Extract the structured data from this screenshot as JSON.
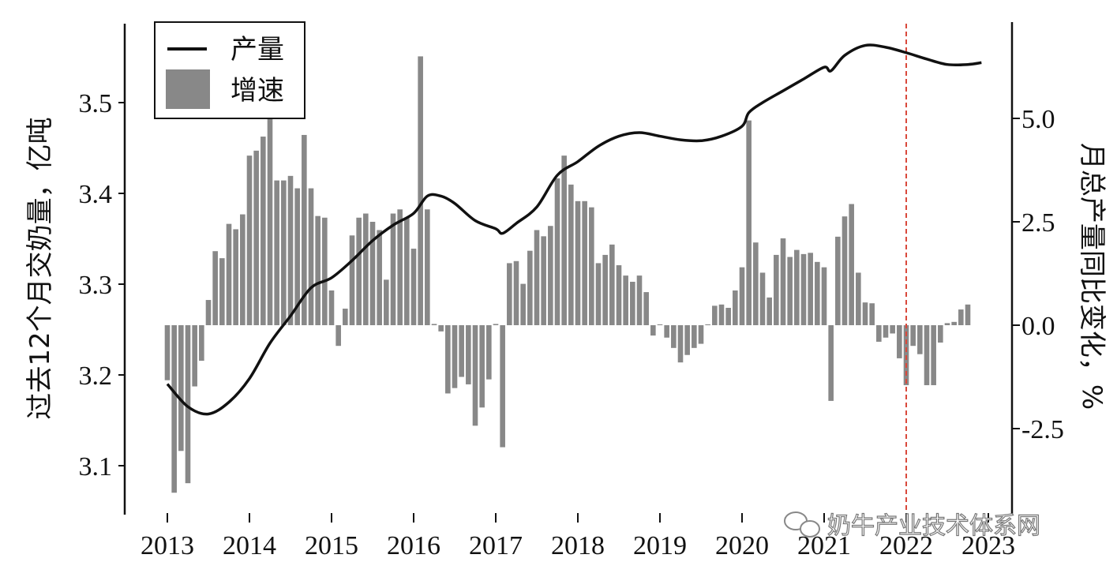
{
  "chart_data": {
    "type": "bar+line",
    "title": "",
    "xlabel": "",
    "ylabel_left": "过去12个月交奶量，亿吨",
    "ylabel_right": "月总产量同比变化，%",
    "x_ticks": [
      "2013",
      "2014",
      "2015",
      "2016",
      "2017",
      "2018",
      "2019",
      "2020",
      "2021",
      "2022",
      "2023"
    ],
    "y_left_ticks": [
      "3.1",
      "3.2",
      "3.3",
      "3.4",
      "3.5"
    ],
    "y_left_range": [
      3.04,
      3.58
    ],
    "y_right_ticks": [
      "-2.5",
      "0.0",
      "2.5",
      "5.0"
    ],
    "y_right_range": [
      -4.6,
      7.2
    ],
    "grid": false,
    "legend": {
      "placement": "top-left",
      "entries": [
        {
          "label": "产量",
          "kind": "line"
        },
        {
          "label": "增速",
          "kind": "bar"
        }
      ]
    },
    "colors": {
      "line": "#111111",
      "bars": "#888888",
      "marker_line": "#d9483b"
    },
    "vertical_marker": {
      "date": "2022-01",
      "style": "dashed"
    },
    "bar_series": {
      "name": "增速",
      "axis": "right",
      "by_year": [
        {
          "year": 2013,
          "values": [
            -1.33,
            -4.05,
            -3.04,
            -3.82,
            -1.48,
            -0.86,
            0.61,
            1.79,
            1.62,
            2.45,
            2.32,
            2.68
          ]
        },
        {
          "year": 2014,
          "values": [
            4.1,
            4.22,
            4.56,
            5.11,
            3.5,
            3.5,
            3.61,
            3.31,
            4.6,
            3.31,
            2.64,
            2.6
          ]
        },
        {
          "year": 2015,
          "values": [
            0.84,
            -0.5,
            0.4,
            2.17,
            2.6,
            2.7,
            2.5,
            2.3,
            1.1,
            2.7,
            2.8,
            2.6
          ]
        },
        {
          "year": 2016,
          "values": [
            1.85,
            6.5,
            2.8,
            0.03,
            -0.15,
            -1.65,
            -1.52,
            -1.25,
            -1.43,
            -2.43,
            -1.99,
            -1.31
          ]
        },
        {
          "year": 2017,
          "values": [
            0.03,
            -2.95,
            1.5,
            1.55,
            1.0,
            1.8,
            2.3,
            2.15,
            2.4,
            3.55,
            4.1,
            3.4
          ]
        },
        {
          "year": 2018,
          "values": [
            3.0,
            3.0,
            2.85,
            1.5,
            1.7,
            1.95,
            1.45,
            1.2,
            1.05,
            1.2,
            0.8,
            -0.25
          ]
        },
        {
          "year": 2019,
          "values": [
            0.02,
            -0.3,
            -0.55,
            -0.9,
            -0.72,
            -0.55,
            -0.45,
            0.02,
            0.47,
            0.5,
            0.42,
            0.84
          ]
        },
        {
          "year": 2020,
          "values": [
            1.4,
            4.95,
            2.0,
            1.27,
            0.67,
            1.7,
            2.1,
            1.65,
            1.82,
            1.72,
            1.75,
            1.53
          ]
        },
        {
          "year": 2021,
          "values": [
            1.4,
            -1.83,
            2.14,
            2.63,
            2.93,
            1.27,
            0.55,
            0.53,
            -0.4,
            -0.3,
            -0.2,
            -0.8
          ]
        },
        {
          "year": 2022,
          "values": [
            -1.45,
            -0.5,
            -0.7,
            -1.45,
            -1.45,
            -0.42,
            0.05,
            0.08,
            0.38,
            0.5
          ]
        }
      ]
    },
    "line_series": {
      "name": "产量",
      "axis": "left",
      "points": [
        {
          "date": "2013-01",
          "value": 3.19
        },
        {
          "date": "2013-04",
          "value": 3.165
        },
        {
          "date": "2013-07",
          "value": 3.157
        },
        {
          "date": "2013-10",
          "value": 3.17
        },
        {
          "date": "2014-01",
          "value": 3.196
        },
        {
          "date": "2014-04",
          "value": 3.235
        },
        {
          "date": "2014-07",
          "value": 3.265
        },
        {
          "date": "2014-10",
          "value": 3.296
        },
        {
          "date": "2015-01",
          "value": 3.307
        },
        {
          "date": "2015-04",
          "value": 3.326
        },
        {
          "date": "2015-07",
          "value": 3.348
        },
        {
          "date": "2015-10",
          "value": 3.365
        },
        {
          "date": "2016-01",
          "value": 3.378
        },
        {
          "date": "2016-03",
          "value": 3.397
        },
        {
          "date": "2016-05",
          "value": 3.397
        },
        {
          "date": "2016-07",
          "value": 3.389
        },
        {
          "date": "2016-10",
          "value": 3.37
        },
        {
          "date": "2017-01",
          "value": 3.361
        },
        {
          "date": "2017-02",
          "value": 3.356
        },
        {
          "date": "2017-04",
          "value": 3.367
        },
        {
          "date": "2017-07",
          "value": 3.385
        },
        {
          "date": "2017-10",
          "value": 3.42
        },
        {
          "date": "2018-01",
          "value": 3.435
        },
        {
          "date": "2018-04",
          "value": 3.452
        },
        {
          "date": "2018-07",
          "value": 3.463
        },
        {
          "date": "2018-10",
          "value": 3.467
        },
        {
          "date": "2019-01",
          "value": 3.463
        },
        {
          "date": "2019-04",
          "value": 3.459
        },
        {
          "date": "2019-07",
          "value": 3.458
        },
        {
          "date": "2019-10",
          "value": 3.463
        },
        {
          "date": "2020-01",
          "value": 3.474
        },
        {
          "date": "2020-02",
          "value": 3.489
        },
        {
          "date": "2020-04",
          "value": 3.5
        },
        {
          "date": "2020-07",
          "value": 3.513
        },
        {
          "date": "2020-10",
          "value": 3.526
        },
        {
          "date": "2021-01",
          "value": 3.539
        },
        {
          "date": "2021-02",
          "value": 3.535
        },
        {
          "date": "2021-04",
          "value": 3.552
        },
        {
          "date": "2021-07",
          "value": 3.563
        },
        {
          "date": "2021-10",
          "value": 3.561
        },
        {
          "date": "2022-01",
          "value": 3.555
        },
        {
          "date": "2022-04",
          "value": 3.548
        },
        {
          "date": "2022-07",
          "value": 3.542
        },
        {
          "date": "2022-10",
          "value": 3.542
        },
        {
          "date": "2022-12",
          "value": 3.544
        }
      ]
    }
  },
  "watermark": {
    "text": "奶牛产业技术体系网",
    "icon": "wechat-icon"
  }
}
